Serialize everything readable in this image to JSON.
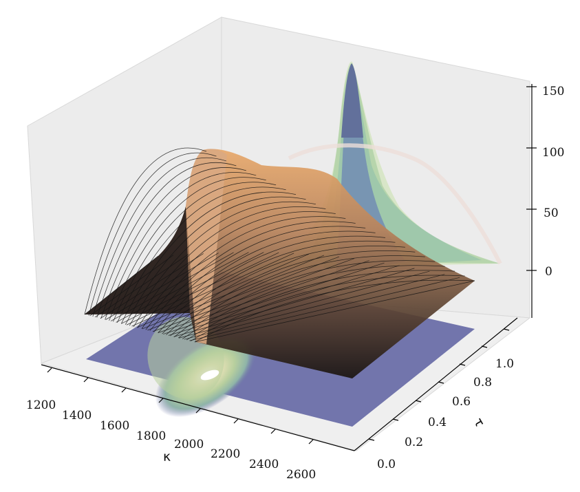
{
  "chart_data": {
    "type": "surface3d",
    "title": "",
    "xlabel": "κ",
    "ylabel": "τ",
    "zlabel": "",
    "x_ticks": [
      "1200",
      "1400",
      "1600",
      "1800",
      "2000",
      "2200",
      "2400",
      "2600"
    ],
    "y_ticks": [
      "0.0",
      "0.2",
      "0.4",
      "0.6",
      "0.8",
      "1.0"
    ],
    "z_ticks": [
      "0",
      "50",
      "100",
      "150"
    ],
    "xlim": [
      1150,
      2650
    ],
    "ylim": [
      0.0,
      1.1
    ],
    "zlim": [
      -50,
      150
    ],
    "surface": {
      "colormap": "copper",
      "wireframe_color": "#000000",
      "peak_value": 82,
      "ridge_value": 60
    },
    "projections": {
      "colormap": "gist_earth",
      "floor_offset": -50,
      "floor_base_color": "#6a6ea8",
      "back_wall_peak": 145
    },
    "pane_color": "#f0f0f0",
    "grid": false
  }
}
